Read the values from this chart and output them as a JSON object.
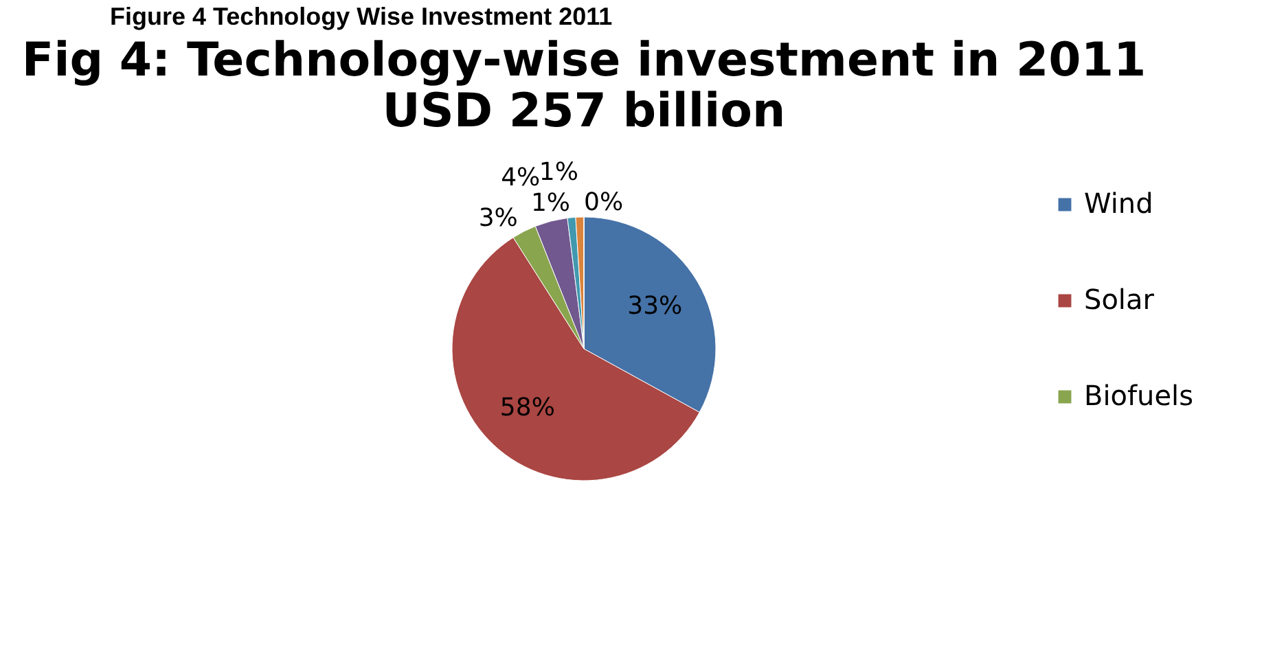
{
  "chart_data": {
    "type": "pie",
    "title": "Fig 4: Technology-wise investment in 2011",
    "subtitle": "USD 257 billion",
    "annotations": [
      "Figure 4 Technology Wise Investment 2011"
    ],
    "categories": [
      "Wind",
      "Solar",
      "Biofuels",
      null,
      null,
      null,
      null
    ],
    "values": [
      33,
      58,
      3,
      4,
      1,
      1,
      0
    ],
    "colors": [
      "#4572a7",
      "#aa4643",
      "#89a54e",
      "#71588f",
      "#4198af",
      "#db843d",
      "#93a9cf"
    ],
    "value_labels": [
      "33%",
      "58%",
      "3%",
      "4%",
      "1%",
      "1%",
      "0%"
    ],
    "legend": "right"
  }
}
